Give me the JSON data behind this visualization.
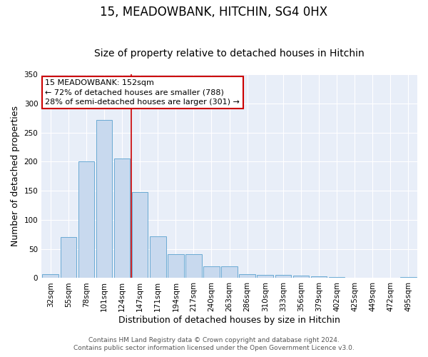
{
  "title": "15, MEADOWBANK, HITCHIN, SG4 0HX",
  "subtitle": "Size of property relative to detached houses in Hitchin",
  "xlabel": "Distribution of detached houses by size in Hitchin",
  "ylabel": "Number of detached properties",
  "bar_labels": [
    "32sqm",
    "55sqm",
    "78sqm",
    "101sqm",
    "124sqm",
    "147sqm",
    "171sqm",
    "194sqm",
    "217sqm",
    "240sqm",
    "263sqm",
    "286sqm",
    "310sqm",
    "333sqm",
    "356sqm",
    "379sqm",
    "402sqm",
    "425sqm",
    "449sqm",
    "472sqm",
    "495sqm"
  ],
  "bar_values": [
    7,
    70,
    201,
    272,
    205,
    148,
    72,
    41,
    41,
    20,
    20,
    7,
    6,
    5,
    4,
    3,
    2,
    0,
    0,
    0,
    2
  ],
  "bar_color": "#c8d9ee",
  "bar_edge_color": "#6aaad4",
  "vline_x": 4.5,
  "vline_color": "#cc0000",
  "annotation_title": "15 MEADOWBANK: 152sqm",
  "annotation_line1": "← 72% of detached houses are smaller (788)",
  "annotation_line2": "28% of semi-detached houses are larger (301) →",
  "annotation_box_facecolor": "#ffffff",
  "annotation_box_edgecolor": "#cc0000",
  "ylim": [
    0,
    350
  ],
  "yticks": [
    0,
    50,
    100,
    150,
    200,
    250,
    300,
    350
  ],
  "footer1": "Contains HM Land Registry data © Crown copyright and database right 2024.",
  "footer2": "Contains public sector information licensed under the Open Government Licence v3.0.",
  "plot_bg": "#e8eef8",
  "fig_bg": "#ffffff",
  "grid_color": "#ffffff",
  "title_fontsize": 12,
  "subtitle_fontsize": 10,
  "axis_label_fontsize": 9,
  "tick_fontsize": 7.5,
  "annotation_fontsize": 8,
  "footer_fontsize": 6.5
}
